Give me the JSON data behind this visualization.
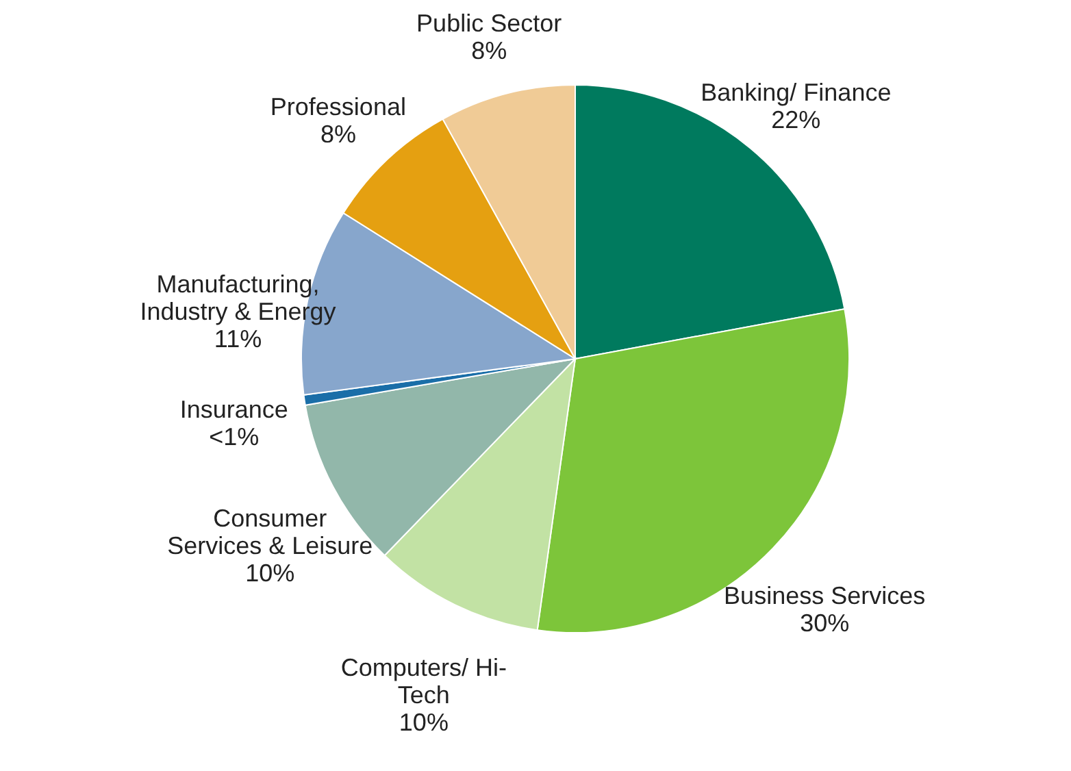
{
  "chart_data": {
    "type": "pie",
    "categories": [
      "Banking/ Finance",
      "Business Services",
      "Computers/ Hi-\nTech",
      "Consumer\nServices & Leisure",
      "Insurance",
      "Manufacturing,\nIndustry & Energy",
      "Professional",
      "Public Sector"
    ],
    "values": [
      22,
      30,
      10,
      10,
      0.6,
      11,
      8,
      8
    ],
    "value_labels": [
      "22%",
      "30%",
      "10%",
      "10%",
      "<1%",
      "11%",
      "8%",
      "8%"
    ],
    "colors": [
      "#007a5e",
      "#7dc53a",
      "#c2e2a4",
      "#92b7aa",
      "#1a6ea8",
      "#87a6cc",
      "#e5a011",
      "#f0cb96"
    ]
  }
}
